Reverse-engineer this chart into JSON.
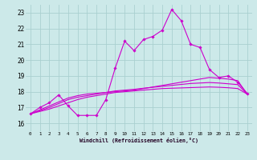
{
  "x": [
    0,
    1,
    2,
    3,
    4,
    5,
    6,
    7,
    8,
    9,
    10,
    11,
    12,
    13,
    14,
    15,
    16,
    17,
    18,
    19,
    20,
    21,
    22,
    23
  ],
  "line_main": [
    16.6,
    17.0,
    17.3,
    17.8,
    17.1,
    16.5,
    16.5,
    16.5,
    17.5,
    19.5,
    21.2,
    20.6,
    21.3,
    21.5,
    21.9,
    23.2,
    22.5,
    21.0,
    20.8,
    19.4,
    18.9,
    19.0,
    18.6,
    17.9
  ],
  "line_avg1": [
    16.6,
    16.85,
    17.1,
    17.35,
    17.6,
    17.75,
    17.85,
    17.9,
    17.95,
    18.0,
    18.05,
    18.1,
    18.2,
    18.3,
    18.4,
    18.5,
    18.6,
    18.7,
    18.8,
    18.9,
    18.85,
    18.8,
    18.7,
    17.85
  ],
  "line_avg2": [
    16.6,
    16.8,
    17.0,
    17.25,
    17.5,
    17.65,
    17.75,
    17.85,
    17.95,
    18.05,
    18.1,
    18.15,
    18.22,
    18.28,
    18.34,
    18.4,
    18.46,
    18.52,
    18.55,
    18.58,
    18.55,
    18.5,
    18.45,
    17.85
  ],
  "line_avg3": [
    16.6,
    16.75,
    16.9,
    17.1,
    17.3,
    17.5,
    17.65,
    17.75,
    17.85,
    17.95,
    18.0,
    18.05,
    18.1,
    18.15,
    18.2,
    18.22,
    18.24,
    18.26,
    18.28,
    18.3,
    18.28,
    18.25,
    18.2,
    17.85
  ],
  "bg_color": "#cce9e9",
  "grid_color": "#aad0d0",
  "line_color": "#cc00cc",
  "xlabel": "Windchill (Refroidissement éolien,°C)",
  "ylim": [
    15.5,
    23.5
  ],
  "xlim": [
    -0.5,
    23.5
  ],
  "yticks": [
    16,
    17,
    18,
    19,
    20,
    21,
    22,
    23
  ],
  "xticks": [
    0,
    1,
    2,
    3,
    4,
    5,
    6,
    7,
    8,
    9,
    10,
    11,
    12,
    13,
    14,
    15,
    16,
    17,
    18,
    19,
    20,
    21,
    22,
    23
  ]
}
